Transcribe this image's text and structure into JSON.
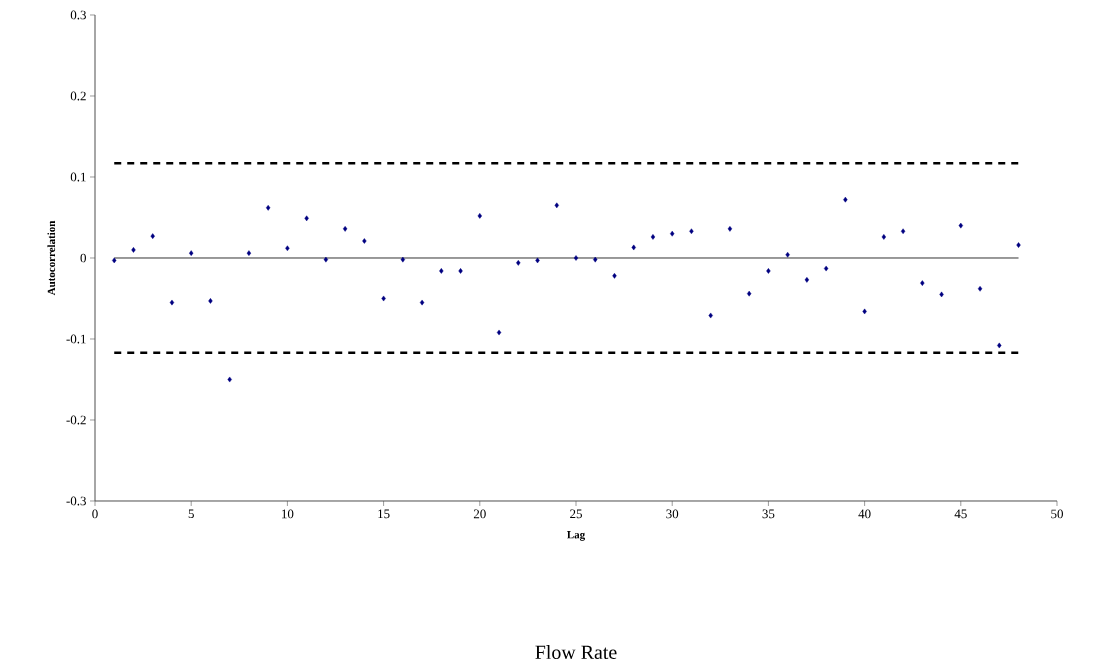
{
  "chart_data": {
    "type": "scatter",
    "title": "Flow Rate",
    "xlabel": "Lag",
    "ylabel": "Autocorrelation",
    "x": [
      1,
      2,
      3,
      4,
      5,
      6,
      7,
      8,
      9,
      10,
      11,
      12,
      13,
      14,
      15,
      16,
      17,
      18,
      19,
      20,
      21,
      22,
      23,
      24,
      25,
      26,
      27,
      28,
      29,
      30,
      31,
      32,
      33,
      34,
      35,
      36,
      37,
      38,
      39,
      40,
      41,
      42,
      43,
      44,
      45,
      46,
      47,
      48
    ],
    "series": [
      {
        "color": "#000080",
        "values": [
          -0.003,
          0.01,
          0.027,
          -0.055,
          0.006,
          -0.053,
          -0.15,
          0.006,
          0.062,
          0.012,
          0.049,
          -0.002,
          0.036,
          0.021,
          -0.05,
          -0.002,
          -0.055,
          -0.016,
          -0.016,
          0.052,
          -0.092,
          -0.006,
          -0.003,
          0.065,
          0.0,
          -0.002,
          -0.022,
          0.013,
          0.026,
          0.03,
          0.033,
          -0.071,
          0.036,
          -0.044,
          -0.016,
          0.004,
          -0.027,
          -0.013,
          0.072,
          -0.066,
          0.026,
          0.033,
          -0.031,
          -0.045,
          0.04,
          -0.038,
          -0.108,
          0.016
        ]
      }
    ],
    "marker": "diamond",
    "xlim": [
      0,
      50
    ],
    "xticks": [
      0,
      5,
      10,
      15,
      20,
      25,
      30,
      35,
      40,
      45,
      50
    ],
    "ylim": [
      -0.3,
      0.3
    ],
    "yticks": [
      -0.3,
      -0.2,
      -0.1,
      0,
      0.1,
      0.2,
      0.3
    ],
    "ref_lines": [
      {
        "axis": "y",
        "value": 0.117,
        "color": "#000000",
        "line_style": "dashed"
      },
      {
        "axis": "y",
        "value": -0.117,
        "color": "#000000",
        "line_style": "dashed"
      },
      {
        "axis": "y",
        "value": 0,
        "color": "#000000",
        "line_style": "solid"
      }
    ]
  }
}
